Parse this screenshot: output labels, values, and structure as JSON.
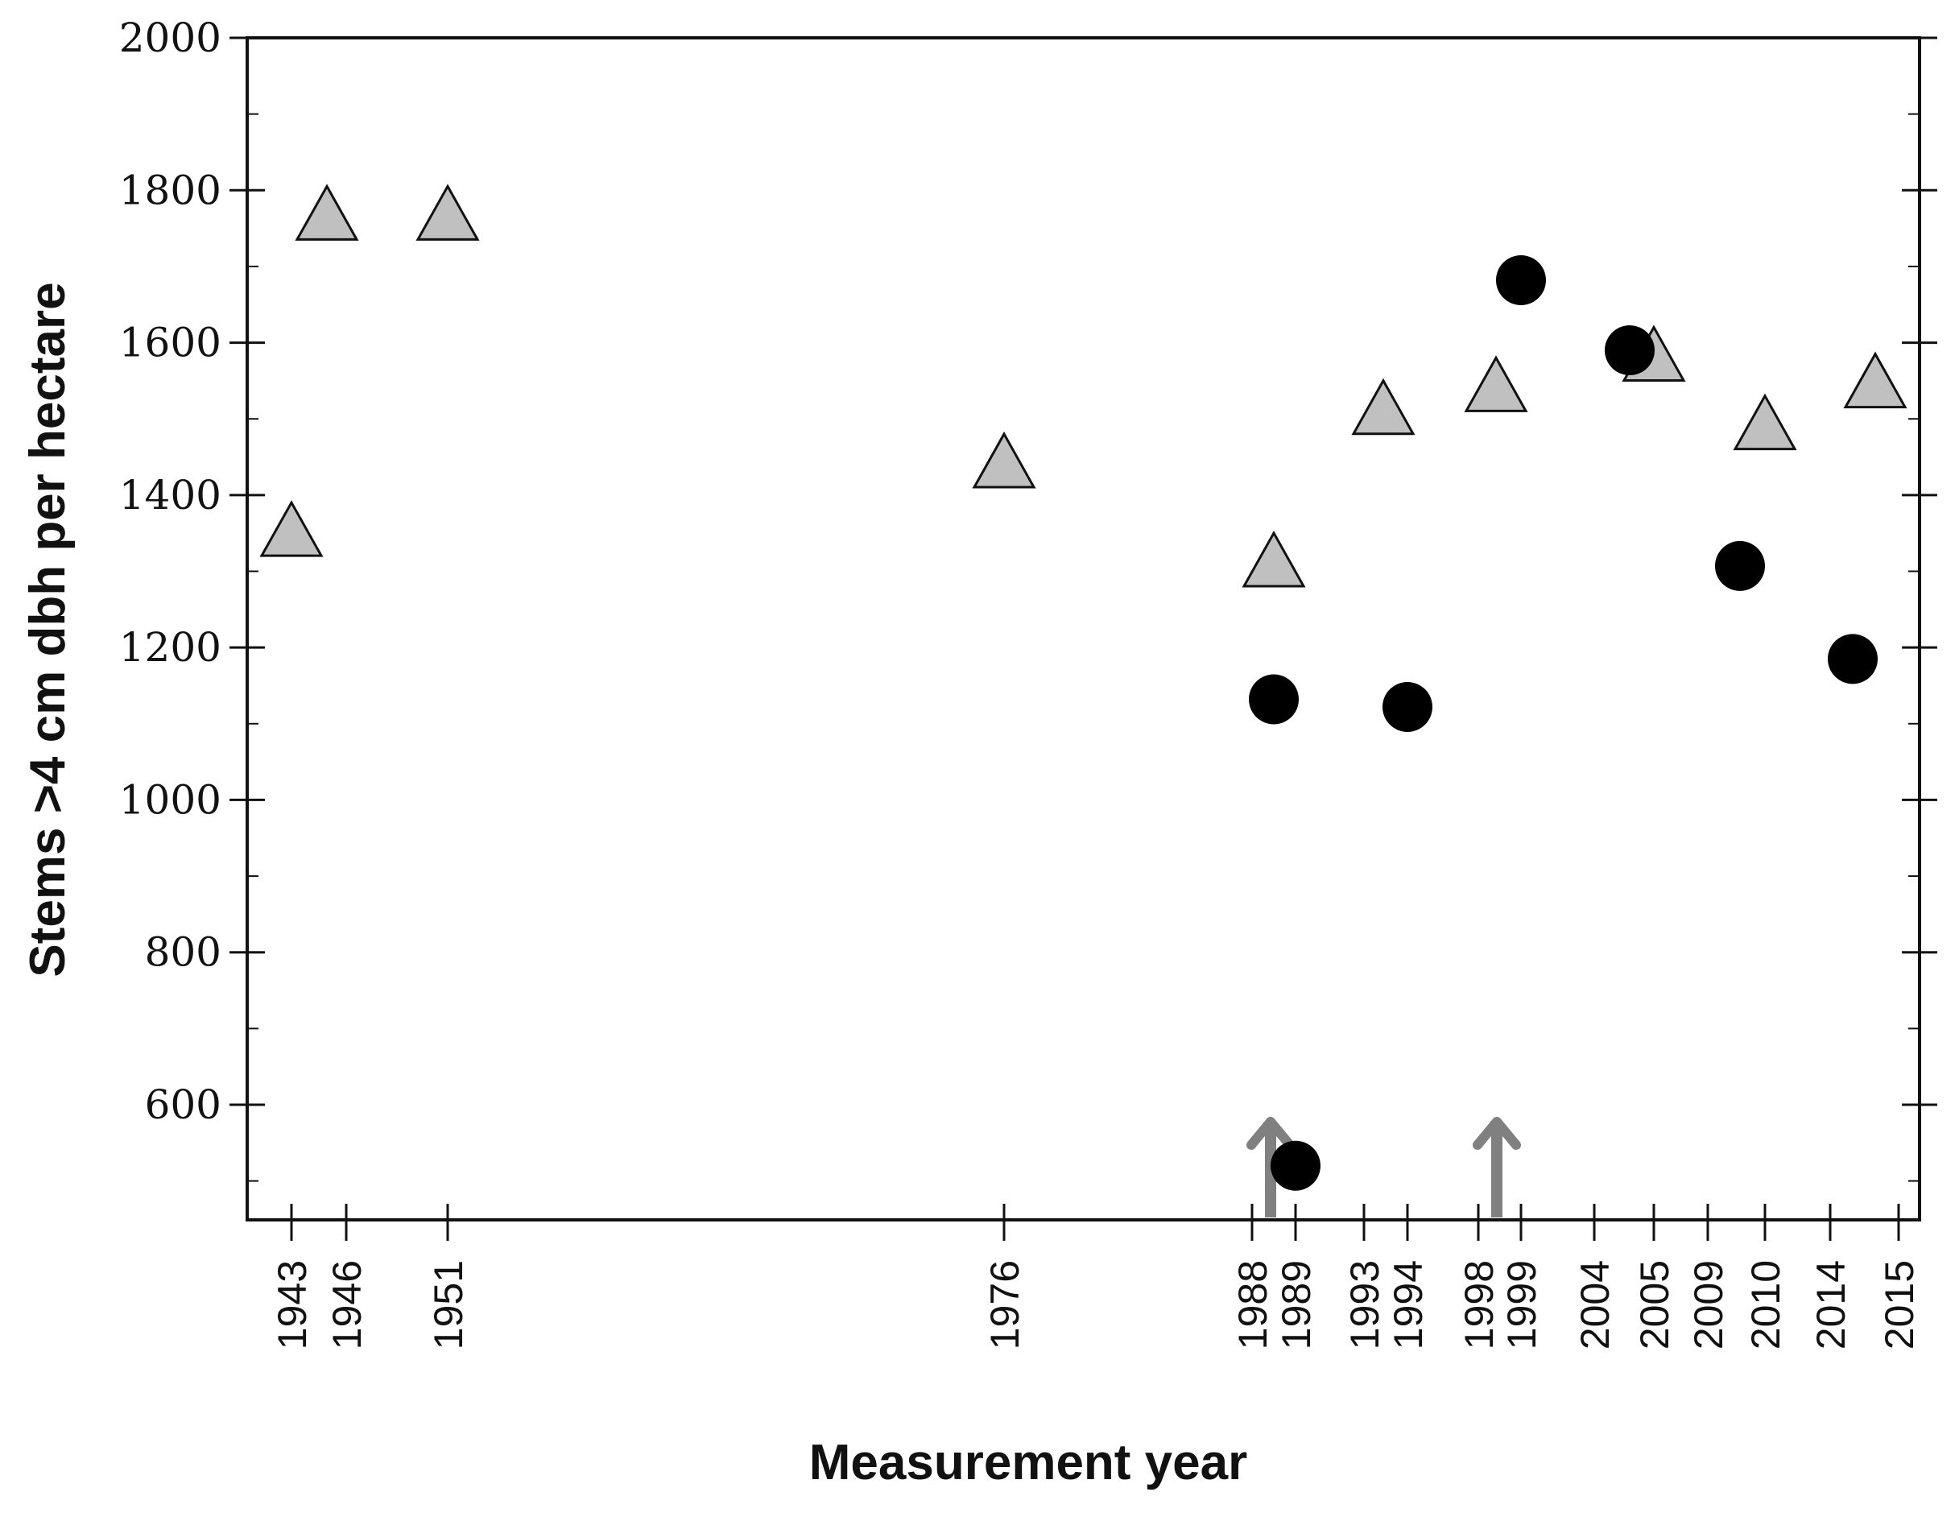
{
  "chart_data": {
    "type": "scatter",
    "xlabel": "Measurement year",
    "ylabel": "Stems >4 cm dbh per hectare",
    "ylim": [
      445,
      2000
    ],
    "yticks": [
      600,
      800,
      1000,
      1200,
      1400,
      1600,
      1800,
      2000
    ],
    "xticks": [
      "1943",
      "1946",
      "1951",
      "1976",
      "1988",
      "1989",
      "1993",
      "1994",
      "1998",
      "1999",
      "2004",
      "2005",
      "2009",
      "2010",
      "2014",
      "2015"
    ],
    "series": [
      {
        "marker": "triangle",
        "color": "#c0c0c0",
        "points": [
          {
            "x": "1943",
            "y": 1350
          },
          {
            "x": "1946",
            "y": 1765
          },
          {
            "x": "1951",
            "y": 1765
          },
          {
            "x": "1976",
            "y": 1440
          },
          {
            "x": "1988",
            "y": 1310
          },
          {
            "x": "1993",
            "y": 1510
          },
          {
            "x": "1998",
            "y": 1540
          },
          {
            "x": "2005",
            "y": 1580
          },
          {
            "x": "2010",
            "y": 1490
          },
          {
            "x": "2015",
            "y": 1545
          }
        ]
      },
      {
        "marker": "circle",
        "color": "#000000",
        "points": [
          {
            "x": "1988",
            "y": 1132
          },
          {
            "x": "1989",
            "y": 520
          },
          {
            "x": "1994",
            "y": 1122
          },
          {
            "x": "1999",
            "y": 1682
          },
          {
            "x": "2004",
            "y": 1590
          },
          {
            "x": "2009",
            "y": 1307
          },
          {
            "x": "2014",
            "y": 1185
          }
        ]
      }
    ],
    "events": [
      {
        "x": "1988",
        "color": "#808080"
      },
      {
        "x": "1998",
        "color": "#808080"
      }
    ],
    "grid": false,
    "legend": "none"
  }
}
